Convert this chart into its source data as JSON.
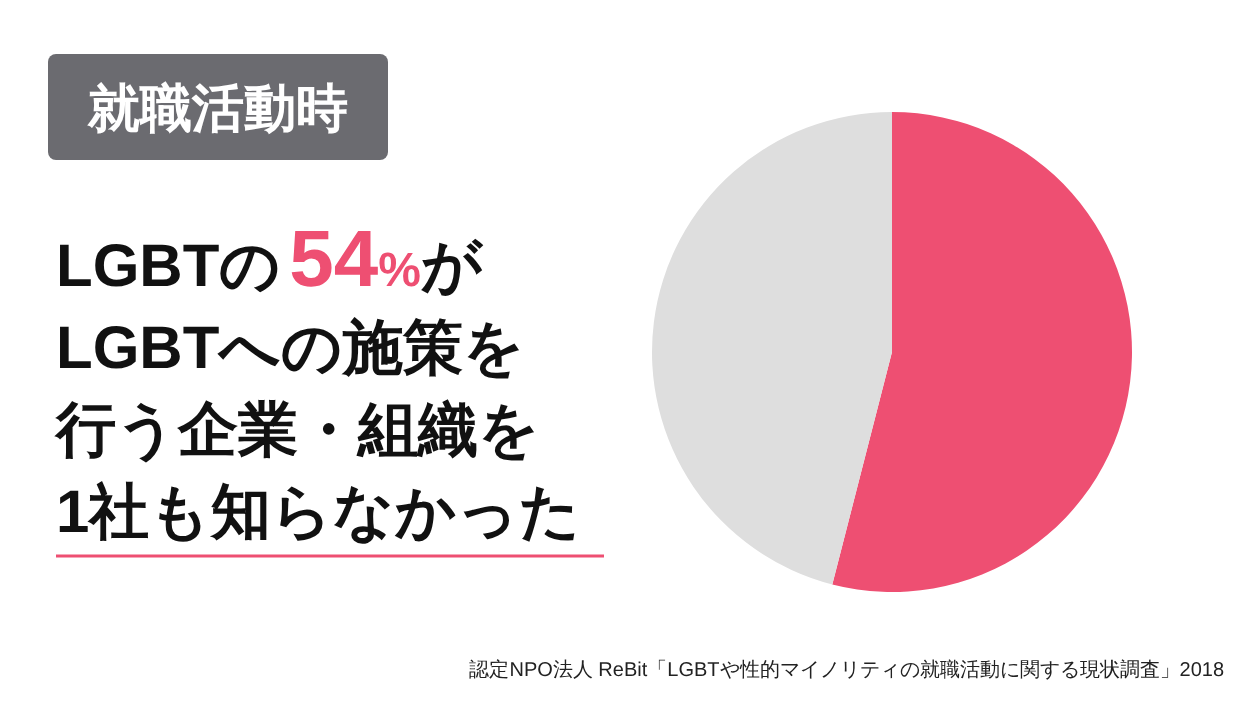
{
  "chart_data": {
    "type": "pie",
    "title": "就職活動時",
    "categories": [
      null,
      null
    ],
    "values": [
      54,
      46
    ],
    "colors": [
      "#ee4f72",
      "#dedede"
    ],
    "annotations": [
      "LGBTの54%が",
      "LGBTへの施策を",
      "行う企業・組織を",
      "1社も知らなかった",
      "認定NPO法人 ReBit「LGBTや性的マイノリティの就職活動に関する現状調査」2018"
    ]
  }
}
